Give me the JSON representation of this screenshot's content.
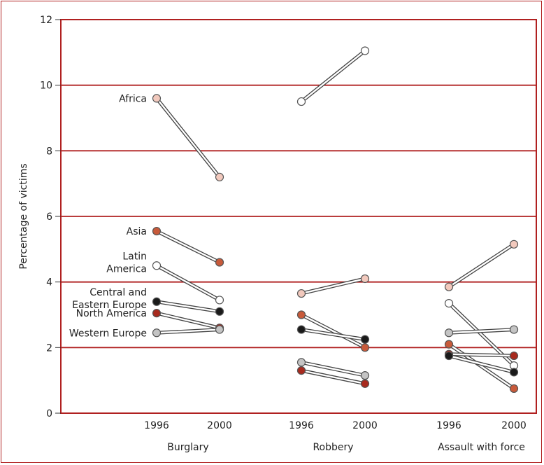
{
  "chart_data": {
    "type": "line",
    "ylabel": "Percentage of victims",
    "ylim": [
      0,
      12
    ],
    "yticks": [
      "0",
      "2",
      "4",
      "6",
      "8",
      "10",
      "12"
    ],
    "grid": true,
    "groups": [
      {
        "name": "Burglary",
        "x": [
          "1996",
          "2000"
        ],
        "series": [
          {
            "name": "Africa",
            "values": [
              9.6,
              7.2
            ],
            "color": "#f2c9bd"
          },
          {
            "name": "Asia",
            "values": [
              5.55,
              4.6
            ],
            "color": "#c85a3a"
          },
          {
            "name": "Latin America",
            "values": [
              4.5,
              3.45
            ],
            "color": "#ffffff"
          },
          {
            "name": "Central and Eastern Europe",
            "values": [
              3.4,
              3.1
            ],
            "color": "#1a1a1a"
          },
          {
            "name": "North America",
            "values": [
              3.05,
              2.6
            ],
            "color": "#a82a1e"
          },
          {
            "name": "Western Europe",
            "values": [
              2.45,
              2.55
            ],
            "color": "#c4c4c4"
          }
        ]
      },
      {
        "name": "Robbery",
        "x": [
          "1996",
          "2000"
        ],
        "series": [
          {
            "name": "Latin America",
            "values": [
              9.5,
              11.05
            ],
            "color": "#ffffff"
          },
          {
            "name": "Africa",
            "values": [
              3.65,
              4.1
            ],
            "color": "#f2c9bd"
          },
          {
            "name": "Asia",
            "values": [
              3.0,
              2.0
            ],
            "color": "#c85a3a"
          },
          {
            "name": "Central and Eastern Europe",
            "values": [
              2.55,
              2.25
            ],
            "color": "#1a1a1a"
          },
          {
            "name": "Western Europe",
            "values": [
              1.55,
              1.15
            ],
            "color": "#c4c4c4"
          },
          {
            "name": "North America",
            "values": [
              1.3,
              0.9
            ],
            "color": "#a82a1e"
          }
        ]
      },
      {
        "name": "Assault with force",
        "x": [
          "1996",
          "2000"
        ],
        "series": [
          {
            "name": "Africa",
            "values": [
              3.85,
              5.15
            ],
            "color": "#f2c9bd"
          },
          {
            "name": "Latin America",
            "values": [
              3.35,
              1.45
            ],
            "color": "#ffffff"
          },
          {
            "name": "Western Europe",
            "values": [
              2.45,
              2.55
            ],
            "color": "#c4c4c4"
          },
          {
            "name": "Asia",
            "values": [
              2.1,
              0.75
            ],
            "color": "#c85a3a"
          },
          {
            "name": "North America",
            "values": [
              1.8,
              1.75
            ],
            "color": "#a82a1e"
          },
          {
            "name": "Central and Eastern Europe",
            "values": [
              1.75,
              1.25
            ],
            "color": "#1a1a1a"
          }
        ]
      }
    ],
    "series_labels": [
      {
        "text": [
          "Africa"
        ]
      },
      {
        "text": [
          "Asia"
        ]
      },
      {
        "text": [
          "Latin",
          "America"
        ]
      },
      {
        "text": [
          "Central and",
          "Eastern Europe"
        ]
      },
      {
        "text": [
          "North America"
        ]
      },
      {
        "text": [
          "Western Europe"
        ]
      }
    ],
    "colors": {
      "frame": "#b02020",
      "gridline": "#b02020",
      "connector": "#444444",
      "marker_stroke": "#555555"
    }
  }
}
